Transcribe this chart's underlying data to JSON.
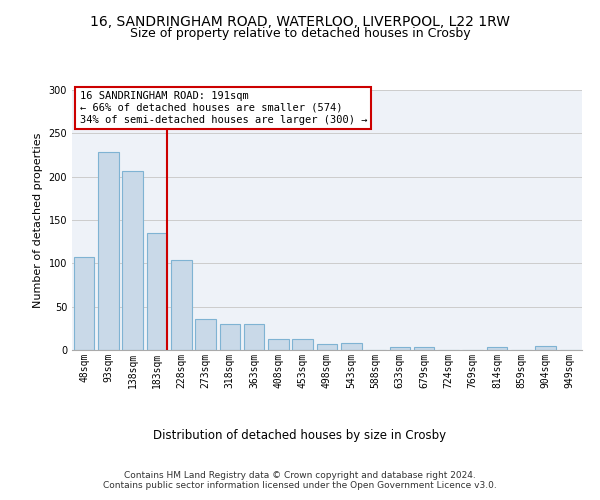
{
  "title1": "16, SANDRINGHAM ROAD, WATERLOO, LIVERPOOL, L22 1RW",
  "title2": "Size of property relative to detached houses in Crosby",
  "xlabel": "Distribution of detached houses by size in Crosby",
  "ylabel": "Number of detached properties",
  "categories": [
    "48sqm",
    "93sqm",
    "138sqm",
    "183sqm",
    "228sqm",
    "273sqm",
    "318sqm",
    "363sqm",
    "408sqm",
    "453sqm",
    "498sqm",
    "543sqm",
    "588sqm",
    "633sqm",
    "679sqm",
    "724sqm",
    "769sqm",
    "814sqm",
    "859sqm",
    "904sqm",
    "949sqm"
  ],
  "values": [
    107,
    229,
    207,
    135,
    104,
    36,
    30,
    30,
    13,
    13,
    7,
    8,
    0,
    4,
    4,
    0,
    0,
    3,
    0,
    5,
    0
  ],
  "bar_color": "#c9d9e8",
  "bar_edge_color": "#7fb3d3",
  "bar_linewidth": 0.8,
  "vline_color": "#cc0000",
  "annotation_text": "16 SANDRINGHAM ROAD: 191sqm\n← 66% of detached houses are smaller (574)\n34% of semi-detached houses are larger (300) →",
  "annotation_box_color": "#ffffff",
  "annotation_box_edge": "#cc0000",
  "ylim": [
    0,
    300
  ],
  "yticks": [
    0,
    50,
    100,
    150,
    200,
    250,
    300
  ],
  "grid_color": "#cccccc",
  "bg_color": "#eef2f8",
  "footnote": "Contains HM Land Registry data © Crown copyright and database right 2024.\nContains public sector information licensed under the Open Government Licence v3.0.",
  "title1_fontsize": 10,
  "title2_fontsize": 9,
  "annot_fontsize": 7.5,
  "ylabel_fontsize": 8,
  "xlabel_fontsize": 8.5,
  "tick_fontsize": 7,
  "footnote_fontsize": 6.5
}
